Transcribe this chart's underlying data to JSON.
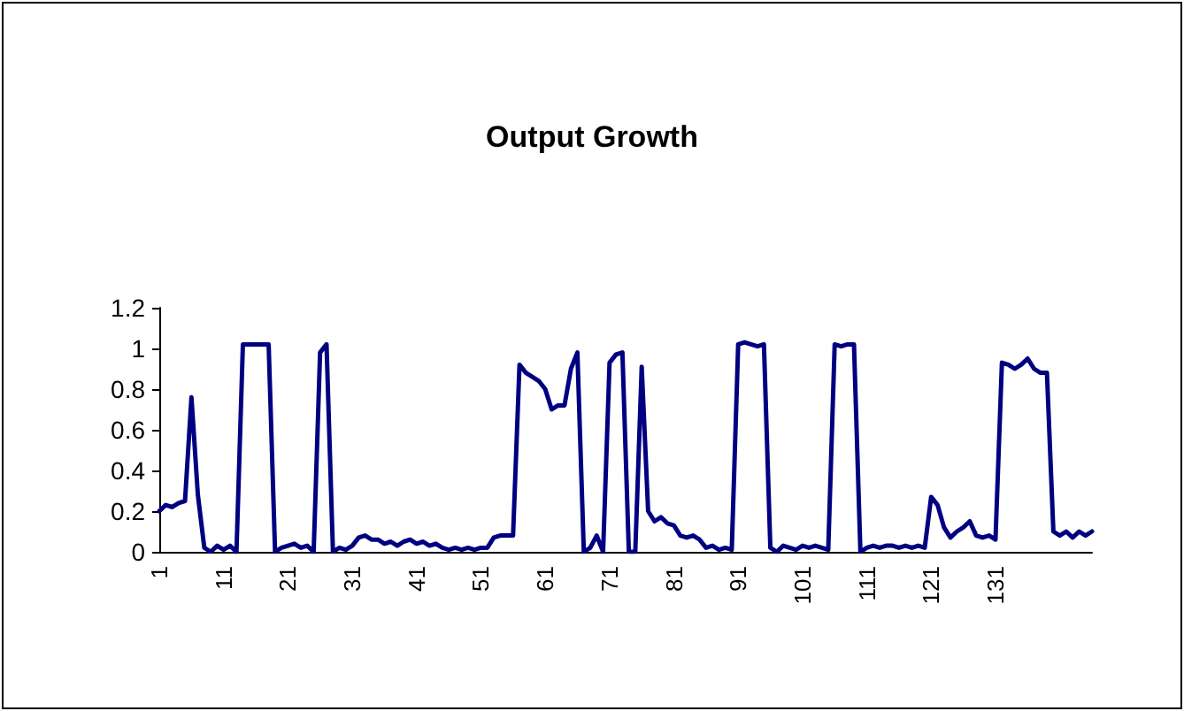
{
  "chart_data": {
    "type": "line",
    "title": "Output Growth",
    "categories": [
      "1",
      null,
      null,
      null,
      null,
      null,
      null,
      null,
      null,
      null,
      "11",
      null,
      null,
      null,
      null,
      null,
      null,
      null,
      null,
      null,
      "21",
      null,
      null,
      null,
      null,
      null,
      null,
      null,
      null,
      null,
      "31",
      null,
      null,
      null,
      null,
      null,
      null,
      null,
      null,
      null,
      "41",
      null,
      null,
      null,
      null,
      null,
      null,
      null,
      null,
      null,
      "51",
      null,
      null,
      null,
      null,
      null,
      null,
      null,
      null,
      null,
      "61",
      null,
      null,
      null,
      null,
      null,
      null,
      null,
      null,
      null,
      "71",
      null,
      null,
      null,
      null,
      null,
      null,
      null,
      null,
      null,
      "81",
      null,
      null,
      null,
      null,
      null,
      null,
      null,
      null,
      null,
      "91",
      null,
      null,
      null,
      null,
      null,
      null,
      null,
      null,
      null,
      "101",
      null,
      null,
      null,
      null,
      null,
      null,
      null,
      null,
      null,
      "111",
      null,
      null,
      null,
      null,
      null,
      null,
      null,
      null,
      null,
      "121",
      null,
      null,
      null,
      null,
      null,
      null,
      null,
      null,
      null,
      "131",
      null,
      null,
      null,
      null,
      null,
      null,
      null,
      null,
      null,
      null,
      null,
      null,
      null,
      null,
      null
    ],
    "series": [
      {
        "color": "#000080",
        "values": [
          0.2,
          0.23,
          0.22,
          0.24,
          0.25,
          0.76,
          0.28,
          0.02,
          0,
          0.03,
          0.01,
          0.03,
          0,
          1.02,
          1.02,
          1.02,
          1.02,
          1.02,
          0,
          0.02,
          0.03,
          0.04,
          0.02,
          0.03,
          0,
          0.98,
          1.02,
          0,
          0.02,
          0.01,
          0.03,
          0.07,
          0.08,
          0.06,
          0.06,
          0.04,
          0.05,
          0.03,
          0.05,
          0.06,
          0.04,
          0.05,
          0.03,
          0.04,
          0.02,
          0.01,
          0.02,
          0.01,
          0.02,
          0.01,
          0.02,
          0.02,
          0.07,
          0.08,
          0.08,
          0.08,
          0.92,
          0.88,
          0.86,
          0.84,
          0.8,
          0.7,
          0.72,
          0.72,
          0.9,
          0.98,
          0,
          0.02,
          0.08,
          0,
          0.93,
          0.97,
          0.98,
          0,
          0,
          0.91,
          0.2,
          0.15,
          0.17,
          0.14,
          0.13,
          0.08,
          0.07,
          0.08,
          0.06,
          0.02,
          0.03,
          0.01,
          0.02,
          0.01,
          1.02,
          1.03,
          1.02,
          1.01,
          1.02,
          0.02,
          0,
          0.03,
          0.02,
          0.01,
          0.03,
          0.02,
          0.03,
          0.02,
          0.01,
          1.02,
          1.01,
          1.02,
          1.02,
          0,
          0.02,
          0.03,
          0.02,
          0.03,
          0.03,
          0.02,
          0.03,
          0.02,
          0.03,
          0.02,
          0.27,
          0.23,
          0.12,
          0.07,
          0.1,
          0.12,
          0.15,
          0.08,
          0.07,
          0.08,
          0.06,
          0.93,
          0.92,
          0.9,
          0.92,
          0.95,
          0.9,
          0.88,
          0.88,
          0.1,
          0.08,
          0.1,
          0.07,
          0.1,
          0.08,
          0.1
        ]
      }
    ],
    "ylim": [
      0,
      1.2
    ],
    "yticks": [
      0,
      0.2,
      0.4,
      0.6,
      0.8,
      1,
      1.2
    ],
    "grid": false,
    "marker": "none",
    "line_style": "solid"
  }
}
